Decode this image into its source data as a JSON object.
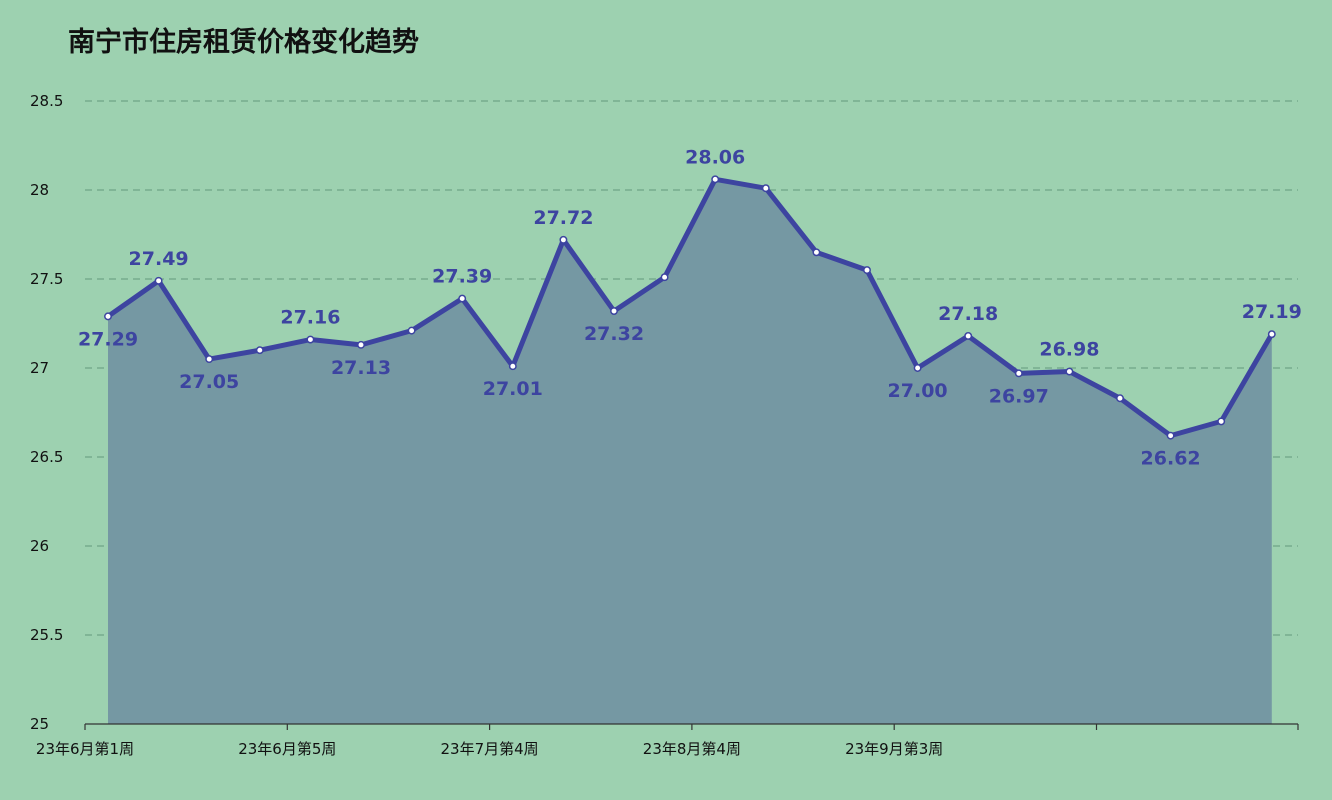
{
  "chart_data": {
    "type": "area",
    "title": "南宁市住房租赁价格变化趋势",
    "xlabel": "",
    "ylabel": "",
    "ylim": [
      25,
      28.5
    ],
    "yticks": [
      "25",
      "25.5",
      "26",
      "26.5",
      "27",
      "27.5",
      "28",
      "28.5"
    ],
    "x_tick_labels": [
      {
        "index": 0,
        "label": "23年6月第1周"
      },
      {
        "index": 4,
        "label": "23年6月第5周"
      },
      {
        "index": 8,
        "label": "23年7月第4周"
      },
      {
        "index": 12,
        "label": "23年8月第4周"
      },
      {
        "index": 16,
        "label": "23年9月第3周"
      }
    ],
    "grid": true,
    "values": [
      27.29,
      27.49,
      27.05,
      27.1,
      27.16,
      27.13,
      27.21,
      27.39,
      27.01,
      27.72,
      27.32,
      27.51,
      28.06,
      28.01,
      27.65,
      27.55,
      27.0,
      27.18,
      26.97,
      26.98,
      26.83,
      26.62,
      26.7,
      27.19
    ],
    "data_labels": [
      {
        "index": 0,
        "text": "27.29",
        "pos": "below"
      },
      {
        "index": 1,
        "text": "27.49",
        "pos": "above"
      },
      {
        "index": 2,
        "text": "27.05",
        "pos": "below"
      },
      {
        "index": 4,
        "text": "27.16",
        "pos": "above"
      },
      {
        "index": 5,
        "text": "27.13",
        "pos": "below"
      },
      {
        "index": 7,
        "text": "27.39",
        "pos": "above"
      },
      {
        "index": 8,
        "text": "27.01",
        "pos": "below"
      },
      {
        "index": 9,
        "text": "27.72",
        "pos": "above"
      },
      {
        "index": 10,
        "text": "27.32",
        "pos": "below"
      },
      {
        "index": 12,
        "text": "28.06",
        "pos": "above"
      },
      {
        "index": 16,
        "text": "27.00",
        "pos": "below"
      },
      {
        "index": 17,
        "text": "27.18",
        "pos": "above"
      },
      {
        "index": 18,
        "text": "26.97",
        "pos": "below"
      },
      {
        "index": 19,
        "text": "26.98",
        "pos": "above"
      },
      {
        "index": 21,
        "text": "26.62",
        "pos": "below"
      },
      {
        "index": 23,
        "text": "27.19",
        "pos": "above"
      }
    ],
    "colors": {
      "background": "#9dd1b0",
      "line": "#3d44a0",
      "area": "#7598a3",
      "grid": "#6fa587",
      "label": "#3d44a0"
    }
  }
}
